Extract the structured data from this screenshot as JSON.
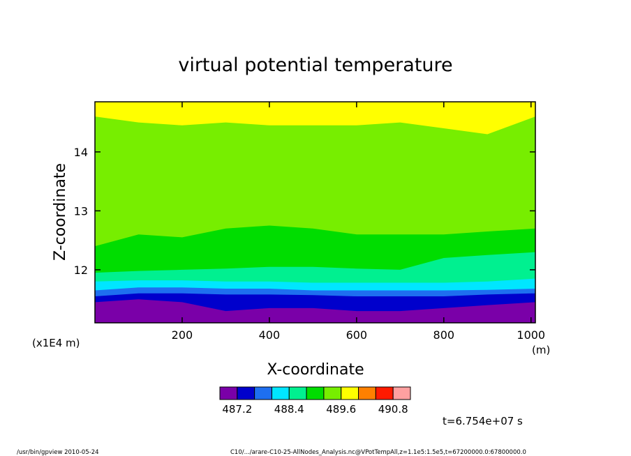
{
  "chart_data": {
    "type": "heatmap",
    "title": "virtual potential temperature",
    "xlabel": "X-coordinate",
    "ylabel": "Z-coordinate",
    "x_unit": "(m)",
    "y_unit": "(x1E4 m)",
    "xlim": [
      0,
      1010
    ],
    "ylim": [
      11.1,
      14.85
    ],
    "x_ticks": [
      200,
      400,
      600,
      800,
      1000
    ],
    "y_ticks": [
      12,
      13,
      14
    ],
    "x_tick_labels": [
      "200",
      "400",
      "600",
      "800",
      "1000"
    ],
    "y_tick_labels": [
      "12",
      "13",
      "14"
    ],
    "colorbar": {
      "colors": [
        "#7a00a8",
        "#0000cc",
        "#1e6ff0",
        "#00e6ff",
        "#00f090",
        "#00dd00",
        "#77ee00",
        "#ffff00",
        "#ff8000",
        "#ff1a00",
        "#ffa0a0"
      ],
      "tick_values": [
        487.2,
        488.4,
        489.6,
        490.8
      ],
      "tick_labels": [
        "487.2",
        "488.4",
        "489.6",
        "490.8"
      ]
    },
    "bands_top_z": {
      "x": [
        0,
        100,
        200,
        300,
        400,
        500,
        600,
        700,
        800,
        900,
        1010
      ],
      "band_0": [
        11.45,
        11.5,
        11.45,
        11.3,
        11.35,
        11.35,
        11.3,
        11.3,
        11.35,
        11.4,
        11.45
      ],
      "band_1": [
        11.55,
        11.6,
        11.6,
        11.58,
        11.58,
        11.57,
        11.55,
        11.55,
        11.55,
        11.58,
        11.6
      ],
      "band_2": [
        11.65,
        11.7,
        11.7,
        11.68,
        11.68,
        11.65,
        11.65,
        11.65,
        11.65,
        11.66,
        11.68
      ],
      "band_3": [
        11.8,
        11.82,
        11.82,
        11.8,
        11.8,
        11.78,
        11.78,
        11.78,
        11.78,
        11.8,
        11.85
      ],
      "band_4": [
        11.95,
        11.98,
        12.0,
        12.02,
        12.05,
        12.05,
        12.02,
        12.0,
        12.2,
        12.25,
        12.3
      ],
      "band_5": [
        12.4,
        12.6,
        12.55,
        12.7,
        12.75,
        12.7,
        12.6,
        12.6,
        12.6,
        12.65,
        12.7
      ],
      "band_6": [
        14.6,
        14.5,
        14.45,
        14.5,
        14.45,
        14.45,
        14.45,
        14.5,
        14.4,
        14.3,
        14.6
      ]
    },
    "time_label": "t=6.754e+07 s"
  },
  "footer": {
    "left": "/usr/bin/gpview   2010-05-24",
    "right": "C10/.../arare-C10-25-AllNodes_Analysis.nc@VPotTempAll,z=1.1e5:1.5e5,t=67200000.0:67800000.0"
  }
}
